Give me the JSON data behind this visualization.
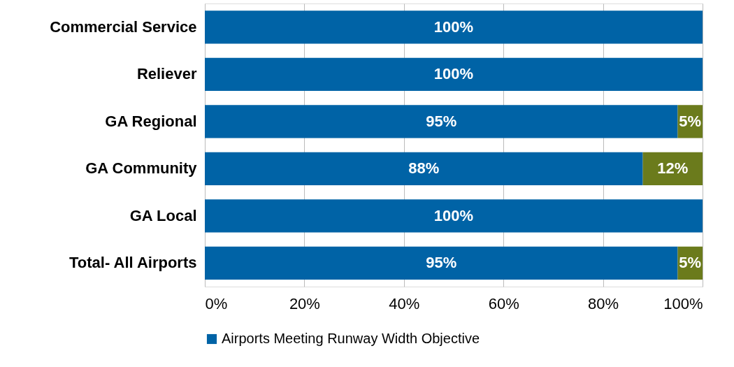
{
  "chart_data": {
    "type": "bar",
    "orientation": "horizontal",
    "stacked": true,
    "categories": [
      "Commercial Service",
      "Reliever",
      "GA Regional",
      "GA Community",
      "GA Local",
      "Total- All Airports"
    ],
    "series": [
      {
        "name": "Airports Meeting Runway Width Objective",
        "color": "#0063a6",
        "values": [
          100,
          100,
          95,
          88,
          100,
          95
        ],
        "value_labels": [
          "100%",
          "100%",
          "95%",
          "88%",
          "100%",
          "95%"
        ]
      },
      {
        "color": "#6b7b1c",
        "values": [
          0,
          0,
          5,
          12,
          0,
          5
        ],
        "value_labels": [
          null,
          null,
          "5%",
          "12%",
          null,
          "5%"
        ]
      }
    ],
    "xlim": [
      0,
      100
    ],
    "xticks": [
      {
        "value": 0,
        "label": "0%"
      },
      {
        "value": 20,
        "label": "20%"
      },
      {
        "value": 40,
        "label": "40%"
      },
      {
        "value": 60,
        "label": "60%"
      },
      {
        "value": 80,
        "label": "80%"
      },
      {
        "value": 100,
        "label": "100%"
      }
    ],
    "grid": "x",
    "legend": "bottom"
  }
}
